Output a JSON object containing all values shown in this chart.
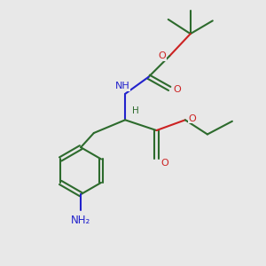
{
  "background_color": "#e8e8e8",
  "bond_color": "#2d6b2d",
  "bond_width": 1.5,
  "nitrogen_color": "#2222cc",
  "oxygen_color": "#cc2222",
  "figsize": [
    3.0,
    3.0
  ],
  "dpi": 100,
  "xlim": [
    0,
    10
  ],
  "ylim": [
    0,
    10
  ]
}
